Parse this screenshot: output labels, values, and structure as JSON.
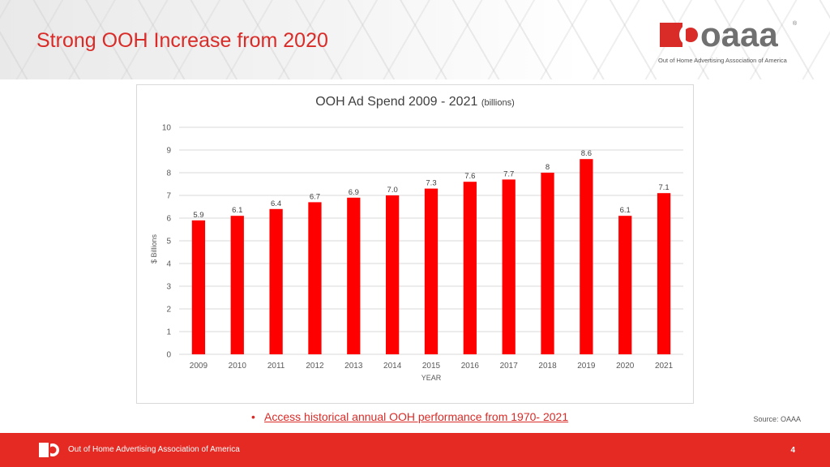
{
  "header": {
    "title": "Strong OOH Increase from 2020",
    "logo_text": "oaaa",
    "logo_tagline": "Out of Home Advertising Association of America"
  },
  "colors": {
    "accent": "#d92b27",
    "bar": "#ff0000",
    "footer": "#e52a24",
    "logo_gray": "#707070"
  },
  "chart_data": {
    "type": "bar",
    "title": "OOH Ad Spend 2009 - 2021",
    "title_suffix": "(billions)",
    "xlabel": "YEAR",
    "ylabel": "$ Billions",
    "categories": [
      "2009",
      "2010",
      "2011",
      "2012",
      "2013",
      "2014",
      "2015",
      "2016",
      "2017",
      "2018",
      "2019",
      "2020",
      "2021"
    ],
    "values": [
      5.9,
      6.1,
      6.4,
      6.7,
      6.9,
      7.0,
      7.3,
      7.6,
      7.7,
      8,
      8.6,
      6.1,
      7.1
    ],
    "data_labels": [
      "5.9",
      "6.1",
      "6.4",
      "6.7",
      "6.9",
      "7.0",
      "7.3",
      "7.6",
      "7.7",
      "8",
      "8.6",
      "6.1",
      "7.1"
    ],
    "ylim": [
      0,
      10
    ],
    "yticks": [
      "0",
      "1",
      "2",
      "3",
      "4",
      "5",
      "6",
      "7",
      "8",
      "9",
      "10"
    ],
    "grid": true,
    "legend": "none"
  },
  "bullet": {
    "marker": "•",
    "link_text": "Access historical annual OOH performance from 1970- 2021"
  },
  "source": "Source: OAAA",
  "footer": {
    "org_name": "Out of Home Advertising Association of America",
    "page_number": "4"
  }
}
